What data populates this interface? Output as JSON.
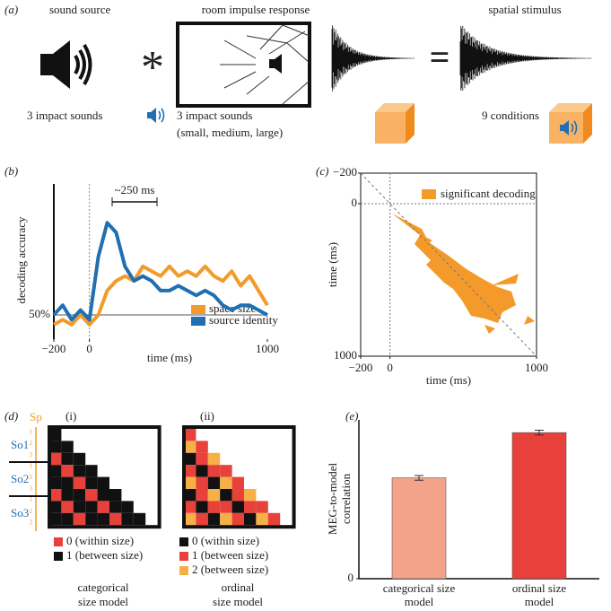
{
  "panel_a": {
    "label": "(a)",
    "sound_source": "sound source",
    "room_impulse_response": "room impulse response",
    "spatial_stimulus": "spatial stimulus",
    "asterisk": "*",
    "equals": "=",
    "sounds_left": "3 impact sounds",
    "sounds_mid": "3 impact sounds",
    "sizes": "(small, medium, large)",
    "conditions": "9 conditions"
  },
  "chart_data": [
    {
      "type": "line",
      "label": "(b)",
      "x_label": "time (ms)",
      "y_label": "decoding accuracy",
      "annotation": "~250 ms",
      "x": [
        -200,
        -150,
        -100,
        -50,
        0,
        50,
        100,
        150,
        200,
        250,
        300,
        350,
        400,
        450,
        500,
        550,
        600,
        650,
        700,
        750,
        800,
        850,
        900,
        950,
        1000
      ],
      "series": [
        {
          "name": "space size",
          "color": "#f39a2b",
          "values": [
            48,
            49,
            48,
            50,
            48,
            50,
            55,
            57,
            58,
            57,
            60,
            59,
            58,
            60,
            58,
            59,
            58,
            60,
            58,
            57,
            59,
            56,
            58,
            55,
            52
          ]
        },
        {
          "name": "source identity",
          "color": "#1f6fb2",
          "values": [
            50,
            52,
            49,
            51,
            49,
            62,
            69,
            67,
            60,
            57,
            58,
            57,
            55,
            55,
            56,
            55,
            54,
            55,
            54,
            52,
            51,
            52,
            52,
            51,
            50
          ]
        }
      ],
      "xlim": [
        -200,
        1000
      ],
      "xticks": [
        {
          "value": -200,
          "label": "−200"
        },
        0,
        1000
      ],
      "ylim": [
        45,
        77
      ],
      "yticks": [
        {
          "value": 50,
          "label": "50%"
        }
      ]
    },
    {
      "type": "region",
      "label": "(c)",
      "x_label": "time (ms)",
      "y_label": "time (ms)",
      "series": [
        {
          "name": "significant decoding",
          "color": "#f39a2b"
        }
      ],
      "xlim": [
        -200,
        1000
      ],
      "xticks": [
        {
          "value": -200,
          "label": "−200"
        },
        0,
        1000
      ],
      "ylim": [
        -200,
        1000
      ],
      "yticks": [
        {
          "value": -200,
          "label": "−200"
        },
        0,
        1000
      ]
    },
    {
      "type": "bar",
      "label": "(e)",
      "y_label": [
        "MEG-to-model",
        "correlation"
      ],
      "categories": [
        "categorical size model",
        "ordinal size model"
      ],
      "values": [
        0.127,
        0.184
      ],
      "errors": [
        0.003,
        0.003
      ],
      "colors": [
        "#f4a38a",
        "#e8403a"
      ],
      "ylim": [
        0,
        0.2
      ],
      "yticks": [
        0
      ]
    }
  ],
  "panel_d": {
    "label": "(d)",
    "sp": "Sp",
    "sp_levels": [
      "1",
      "2",
      "3"
    ],
    "so": [
      "So1",
      "So2",
      "So3"
    ],
    "models": [
      {
        "label": "(i)",
        "name": [
          "categorical",
          "size model"
        ],
        "legend": [
          "0 (within size)",
          "1 (between size)"
        ],
        "colors": [
          "#e8403a",
          "#111111"
        ],
        "matrix": [
          [
            1
          ],
          [
            1,
            1
          ],
          [
            0,
            1,
            1
          ],
          [
            1,
            0,
            1,
            1
          ],
          [
            1,
            1,
            0,
            1,
            1
          ],
          [
            0,
            1,
            1,
            0,
            1,
            1
          ],
          [
            1,
            0,
            1,
            1,
            0,
            1,
            1
          ],
          [
            1,
            1,
            0,
            1,
            1,
            0,
            1,
            1
          ]
        ]
      },
      {
        "label": "(ii)",
        "name": [
          "ordinal",
          "size model"
        ],
        "legend": [
          "0 (within size)",
          "1 (between size)",
          "2 (between size)"
        ],
        "colors": [
          "#111111",
          "#e8403a",
          "#f6b046"
        ],
        "matrix": [
          [
            1
          ],
          [
            2,
            1
          ],
          [
            0,
            1,
            2
          ],
          [
            1,
            0,
            1,
            1
          ],
          [
            2,
            1,
            0,
            2,
            1
          ],
          [
            0,
            1,
            2,
            0,
            1,
            2
          ],
          [
            1,
            0,
            1,
            1,
            0,
            1,
            1
          ],
          [
            2,
            1,
            0,
            2,
            1,
            0,
            2,
            1
          ]
        ]
      }
    ]
  }
}
